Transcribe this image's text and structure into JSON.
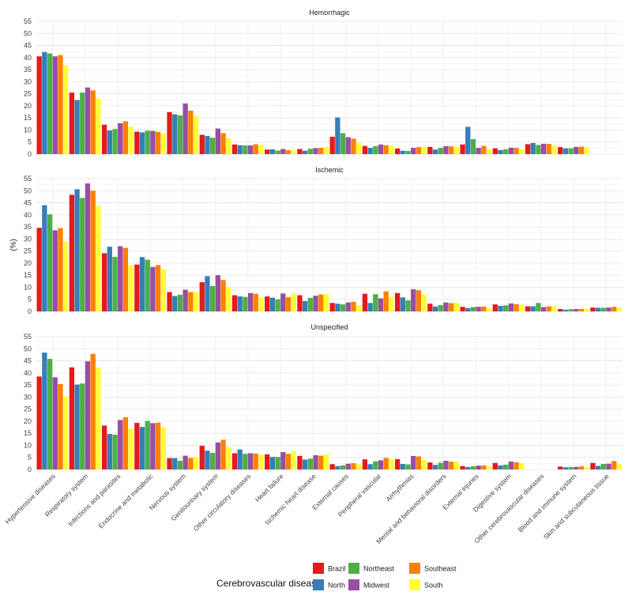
{
  "chart_data": {
    "type": "bar",
    "ylabel": "(%)",
    "ylim": [
      0,
      55
    ],
    "yticks": [
      0,
      5,
      10,
      15,
      20,
      25,
      30,
      35,
      40,
      45,
      50,
      55
    ],
    "grid": true,
    "categories": [
      "Hypertensive diseases",
      "Respiratory system",
      "Infections and parasites",
      "Endocrine and metabolic",
      "Nervous system",
      "Genitourinary system",
      "Other circulatory diseases",
      "Heart failure",
      "Ischemic heart disease",
      "External causes",
      "Peripheral vascular",
      "Arrhythmias",
      "Mental and behavioral disorders",
      "External injuries",
      "Digestive system",
      "Other cerebrovascular diseases",
      "Blood and immune system",
      "Skin and subcutaneous tissue"
    ],
    "legend": {
      "title": "Cerebrovascular disease",
      "position": "bottom",
      "entries": [
        "Brazil",
        "North",
        "Northeast",
        "Midwest",
        "Southeast",
        "South"
      ]
    },
    "colors": [
      "#e41a1c",
      "#377eb8",
      "#4daf4a",
      "#984ea3",
      "#ff7f00",
      "#ffff33"
    ],
    "panels": [
      {
        "title": "Hemorrhagic",
        "series": [
          {
            "name": "Brazil",
            "values": [
              40.5,
              25.5,
              12.2,
              9.3,
              17.4,
              8.0,
              4.0,
              1.9,
              2.1,
              7.2,
              3.4,
              2.3,
              3.0,
              4.0,
              2.4,
              4.1,
              2.9,
              0
            ]
          },
          {
            "name": "North",
            "values": [
              42.3,
              22.4,
              9.8,
              9.0,
              16.5,
              7.5,
              3.7,
              2.0,
              1.4,
              15.2,
              2.6,
              1.4,
              1.9,
              11.3,
              1.7,
              4.6,
              2.4,
              0
            ]
          },
          {
            "name": "Northeast",
            "values": [
              41.7,
              25.5,
              10.4,
              9.7,
              16.0,
              6.8,
              3.6,
              1.5,
              2.2,
              8.7,
              3.3,
              1.3,
              2.6,
              6.2,
              2.0,
              3.8,
              2.4,
              0
            ]
          },
          {
            "name": "Midwest",
            "values": [
              40.5,
              27.6,
              12.8,
              9.6,
              21.0,
              10.6,
              3.6,
              2.1,
              2.5,
              7.0,
              4.0,
              2.6,
              3.3,
              2.6,
              2.7,
              4.3,
              3.0,
              0
            ]
          },
          {
            "name": "Southeast",
            "values": [
              41.0,
              26.4,
              13.6,
              9.2,
              18.0,
              8.7,
              4.1,
              1.6,
              2.6,
              6.4,
              3.7,
              2.9,
              3.2,
              3.4,
              2.6,
              4.2,
              3.1,
              0
            ]
          },
          {
            "name": "South",
            "values": [
              36.8,
              23.0,
              11.5,
              8.6,
              15.7,
              6.6,
              3.8,
              1.6,
              3.0,
              4.6,
              3.5,
              3.0,
              3.0,
              2.0,
              2.1,
              3.5,
              2.9,
              0
            ]
          }
        ]
      },
      {
        "title": "Ischemic",
        "series": [
          {
            "name": "Brazil",
            "values": [
              34.6,
              48.3,
              24.1,
              19.4,
              8.0,
              12.1,
              6.7,
              6.2,
              6.7,
              3.5,
              7.3,
              7.6,
              3.2,
              1.9,
              2.9,
              2.1,
              1.0,
              1.6
            ]
          },
          {
            "name": "North",
            "values": [
              44.0,
              50.6,
              26.8,
              22.5,
              6.4,
              14.6,
              6.2,
              5.7,
              4.3,
              3.2,
              3.5,
              5.8,
              2.0,
              1.4,
              2.3,
              2.1,
              0.7,
              1.5
            ]
          },
          {
            "name": "Northeast",
            "values": [
              40.2,
              47.0,
              22.6,
              21.4,
              6.9,
              10.5,
              6.0,
              5.0,
              5.6,
              2.9,
              7.1,
              4.6,
              2.6,
              1.8,
              2.5,
              3.5,
              0.9,
              1.5
            ]
          },
          {
            "name": "Midwest",
            "values": [
              33.6,
              53.0,
              27.0,
              18.4,
              9.0,
              15.0,
              7.6,
              7.4,
              6.5,
              3.7,
              5.4,
              9.2,
              3.7,
              1.9,
              3.3,
              1.8,
              1.0,
              1.6
            ]
          },
          {
            "name": "Southeast",
            "values": [
              34.5,
              50.0,
              26.3,
              19.2,
              8.0,
              13.0,
              7.3,
              5.9,
              7.0,
              4.0,
              8.3,
              8.8,
              3.4,
              2.0,
              3.0,
              2.1,
              1.0,
              1.9
            ]
          },
          {
            "name": "South",
            "values": [
              28.8,
              43.7,
              19.0,
              17.5,
              8.1,
              9.8,
              5.7,
              7.4,
              7.2,
              2.6,
              6.1,
              7.0,
              3.7,
              1.4,
              2.8,
              2.1,
              1.1,
              1.6
            ]
          }
        ]
      },
      {
        "title": "Unspecified",
        "series": [
          {
            "name": "Brazil",
            "values": [
              38.5,
              42.3,
              18.2,
              19.3,
              4.7,
              9.8,
              6.7,
              6.3,
              5.6,
              2.2,
              4.2,
              4.3,
              2.9,
              1.4,
              2.7,
              0,
              1.2,
              2.7
            ]
          },
          {
            "name": "North",
            "values": [
              48.4,
              35.2,
              14.7,
              17.6,
              4.7,
              7.8,
              8.3,
              5.2,
              4.1,
              1.4,
              2.2,
              2.3,
              1.9,
              1.0,
              1.7,
              0,
              0.9,
              1.5
            ]
          },
          {
            "name": "Northeast",
            "values": [
              45.8,
              35.6,
              14.4,
              20.1,
              3.6,
              6.9,
              6.5,
              5.2,
              4.5,
              1.7,
              3.4,
              2.1,
              2.8,
              1.3,
              2.0,
              0,
              1.0,
              2.3
            ]
          },
          {
            "name": "Midwest",
            "values": [
              38.2,
              44.8,
              20.5,
              19.2,
              5.7,
              11.2,
              6.7,
              7.2,
              5.9,
              2.4,
              3.8,
              5.6,
              3.6,
              1.6,
              3.3,
              0,
              1.1,
              2.4
            ]
          },
          {
            "name": "Southeast",
            "values": [
              35.4,
              47.9,
              21.6,
              19.4,
              4.8,
              12.3,
              6.6,
              6.5,
              5.7,
              2.6,
              4.8,
              5.4,
              3.2,
              1.7,
              3.0,
              0,
              1.3,
              3.5
            ]
          },
          {
            "name": "South",
            "values": [
              30.3,
              42.2,
              16.9,
              17.5,
              5.2,
              9.3,
              6.2,
              7.6,
              6.3,
              2.2,
              4.4,
              4.0,
              3.2,
              1.3,
              2.7,
              0,
              1.0,
              2.2
            ]
          }
        ]
      }
    ]
  }
}
